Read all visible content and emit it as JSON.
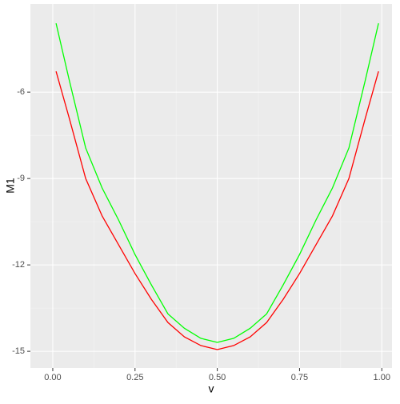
{
  "chart_data": {
    "type": "line",
    "x_label": "v",
    "y_label": "M1",
    "x": [
      0.01,
      0.05,
      0.1,
      0.15,
      0.2,
      0.25,
      0.3,
      0.35,
      0.4,
      0.45,
      0.5,
      0.55,
      0.6,
      0.65,
      0.7,
      0.75,
      0.8,
      0.85,
      0.9,
      0.95,
      0.99
    ],
    "series": [
      {
        "color": "#ff0000",
        "values": [
          -5.28,
          -6.9,
          -9.0,
          -10.3,
          -11.3,
          -12.3,
          -13.2,
          -14.0,
          -14.5,
          -14.8,
          -14.94,
          -14.8,
          -14.5,
          -14.0,
          -13.2,
          -12.3,
          -11.3,
          -10.3,
          -9.0,
          -6.9,
          -5.28
        ]
      },
      {
        "color": "#00ff00",
        "values": [
          -3.61,
          -5.58,
          -7.94,
          -9.33,
          -10.44,
          -11.64,
          -12.7,
          -13.7,
          -14.2,
          -14.55,
          -14.69,
          -14.55,
          -14.2,
          -13.7,
          -12.7,
          -11.64,
          -10.44,
          -9.33,
          -7.94,
          -5.58,
          -3.61
        ]
      }
    ],
    "xlim": [
      -0.068,
      1.031
    ],
    "ylim": [
      -15.58,
      -2.94
    ],
    "xticks": [
      {
        "value": 0,
        "label": "0.00"
      },
      {
        "value": 0.25,
        "label": "0.25"
      },
      {
        "value": 0.5,
        "label": "0.50"
      },
      {
        "value": 0.75,
        "label": "0.75"
      },
      {
        "value": 1,
        "label": "1.00"
      }
    ],
    "yticks": [
      -6,
      -9,
      -12,
      -15
    ],
    "grid": true
  }
}
